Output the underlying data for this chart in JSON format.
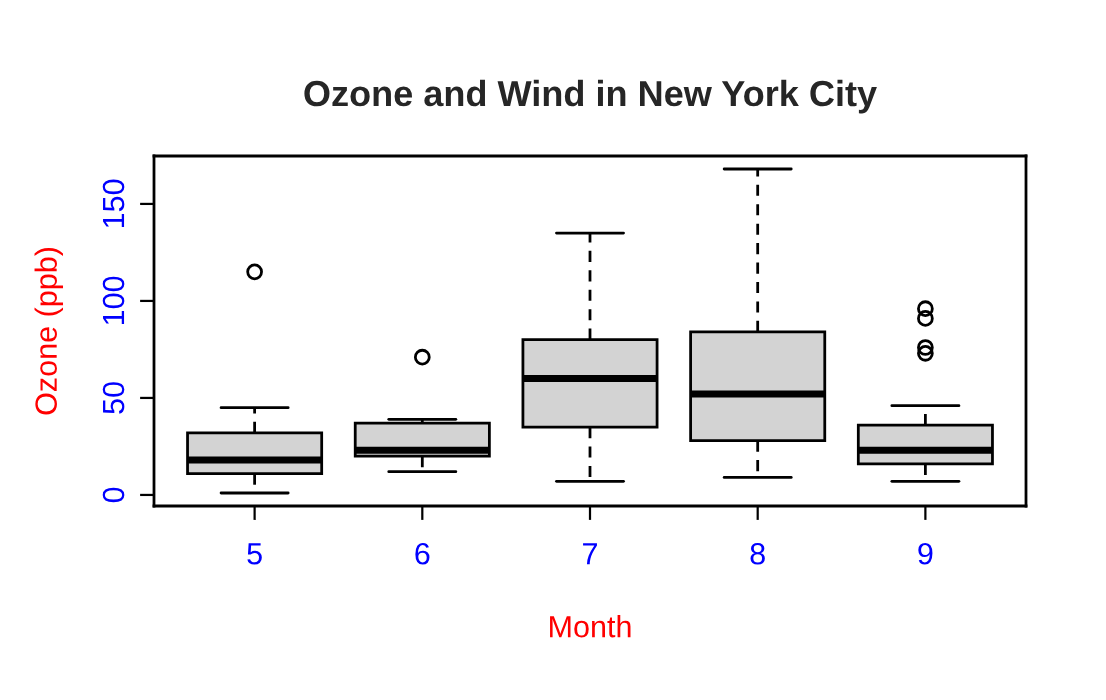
{
  "chart_data": {
    "type": "box",
    "title": "Ozone and Wind in New York City",
    "xlabel": "Month",
    "ylabel": "Ozone (ppb)",
    "categories": [
      "5",
      "6",
      "7",
      "8",
      "9"
    ],
    "boxes": [
      {
        "low": 1,
        "q1": 11,
        "median": 18,
        "q3": 32,
        "high": 45,
        "outliers": [
          115
        ]
      },
      {
        "low": 12,
        "q1": 20,
        "median": 23,
        "q3": 37,
        "high": 39,
        "outliers": [
          71
        ]
      },
      {
        "low": 7,
        "q1": 35,
        "median": 60,
        "q3": 80,
        "high": 135
      },
      {
        "low": 9,
        "q1": 28,
        "median": 52,
        "q3": 84,
        "high": 168
      },
      {
        "low": 7,
        "q1": 16,
        "median": 23,
        "q3": 36,
        "high": 46,
        "outliers": [
          73,
          76,
          91,
          96
        ]
      }
    ],
    "color": "#d3d3d3",
    "ylim": [
      -5.7,
      174.7
    ],
    "yticks": [
      0,
      50,
      100,
      150
    ],
    "grid": false
  }
}
